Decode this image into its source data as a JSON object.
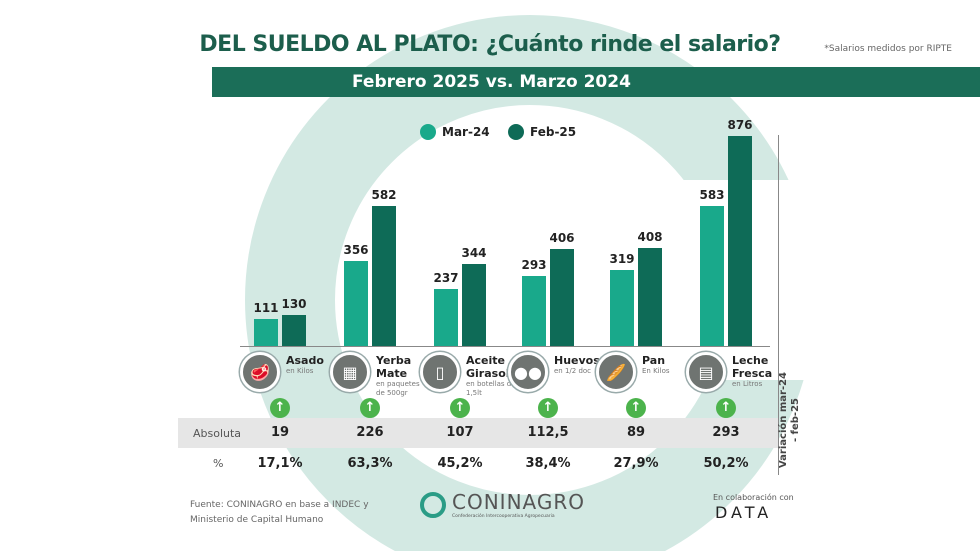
{
  "header": {
    "title": "DEL SUELDO AL PLATO: ¿Cuánto rinde el salario?",
    "subtitle": "Febrero 2025 vs. Marzo 2024",
    "note": "*Salarios medidos por RIPTE"
  },
  "colors": {
    "mar24": "#19a98b",
    "feb25": "#0e6b57",
    "up": "#4cb34c"
  },
  "chart_data": {
    "type": "bar",
    "title": "DEL SUELDO AL PLATO: ¿Cuánto rinde el salario?",
    "categories": [
      {
        "name": "Asado",
        "sub": "en Kilos",
        "icon": "meat-icon",
        "glyph": "🥩"
      },
      {
        "name": "Yerba Mate",
        "sub": "en paquetes de 500gr",
        "icon": "yerba-package-icon",
        "glyph": "▦"
      },
      {
        "name": "Aceite Girasol",
        "sub": "en botellas de 1,5lt",
        "icon": "oil-bottle-icon",
        "glyph": "▯"
      },
      {
        "name": "Huevos",
        "sub": "en 1/2 doc",
        "icon": "eggs-icon",
        "glyph": "●●"
      },
      {
        "name": "Pan",
        "sub": "En Kilos",
        "icon": "bread-icon",
        "glyph": "🥖"
      },
      {
        "name": "Leche Fresca",
        "sub": "en Litros",
        "icon": "milk-icon",
        "glyph": "▤"
      }
    ],
    "series": [
      {
        "name": "Mar-24",
        "values": [
          111,
          356,
          237,
          293,
          319,
          583
        ]
      },
      {
        "name": "Feb-25",
        "values": [
          130,
          582,
          344,
          406,
          408,
          876
        ]
      }
    ],
    "ylim": [
      0,
      876
    ],
    "legend": "top-center"
  },
  "variation": {
    "label": "Variación mar-24 - feb-25",
    "abs_label": "Absoluta",
    "pct_label": "%",
    "absolute": [
      "19",
      "226",
      "107",
      "112,5",
      "89",
      "293"
    ],
    "percent": [
      "17,1%",
      "63,3%",
      "45,2%",
      "38,4%",
      "27,9%",
      "50,2%"
    ]
  },
  "footer": {
    "source_1": "Fuente: CONINAGRO en base a INDEC y",
    "source_2": "Ministerio de Capital Humano",
    "logo": "CONINAGRO",
    "logo_sub": "Confederación Intercooperativa Agropecuaria",
    "collab": "En colaboración con",
    "data_logo": "DATA"
  }
}
